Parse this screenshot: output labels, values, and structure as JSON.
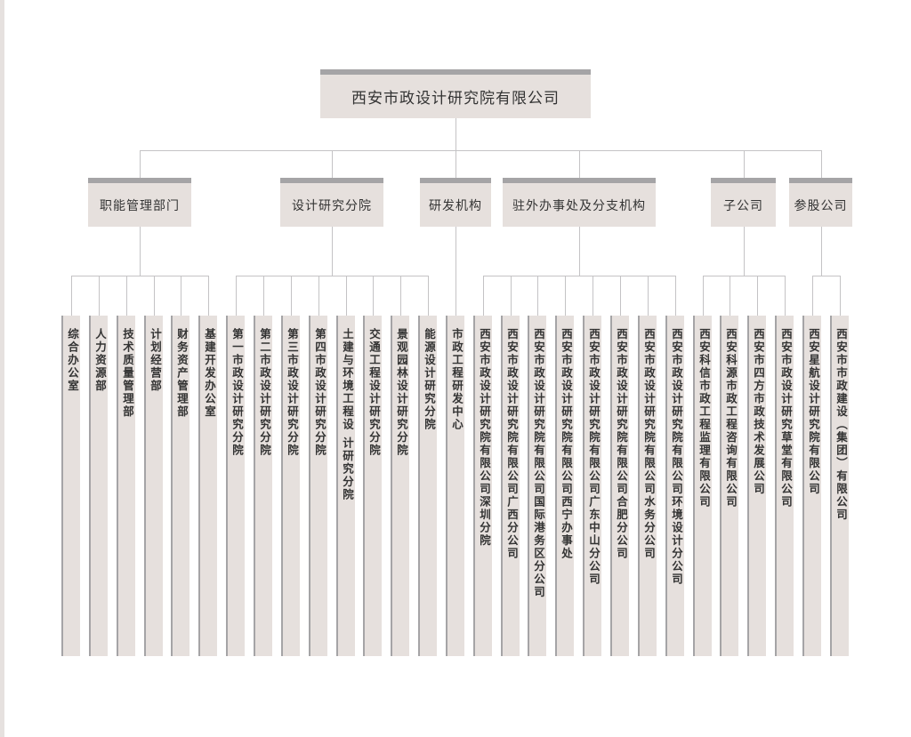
{
  "root": {
    "label": "西安市政设计研究院有限公司"
  },
  "colors": {
    "box_fill": "#e6e0dd",
    "box_top_bar": "#a5a4a6",
    "connector": "#c4c3c5"
  },
  "groups": [
    {
      "label": "职能管理部门",
      "items": [
        "综合办公室",
        "人力资源部",
        "技术质量管理部",
        "计划经营部",
        "财务资产管理部",
        "基建开发办公室"
      ]
    },
    {
      "label": "设计研究分院",
      "items": [
        "第一市政设计研究分院",
        "第二市政设计研究分院",
        "第三市政设计研究分院",
        "第四市政设计研究分院",
        "土建与环境工程设 计研究分院",
        "交通工程设计研究分院",
        "景观园林设计研究分院",
        "能源设计研究分院"
      ]
    },
    {
      "label": "研发机构",
      "items": [
        "市政工程研发中心"
      ]
    },
    {
      "label": "驻外办事处及分支机构",
      "items": [
        "西安市政设计研究院有限公司深圳分院",
        "西安市政设计研究院有限公司广西分公司",
        "西安市政设计研究院有限公司国际港务区分公司",
        "西安市政设计研究院有限公司西宁办事处",
        "西安市政设计研究院有限公司广东中山分公司",
        "西安市政设计研究院有限公司合肥分公司",
        "西安市政设计研究院有限公司水务分公司",
        "西安市政设计研究院有限公司环境设计分公司"
      ]
    },
    {
      "label": "子公司",
      "items": [
        "西安科信市政工程监理有限公司",
        "西安科源市政工程咨询有限公司",
        "西安市四方市政技术发展公司",
        "西安市政设计研究草堂有限公司"
      ]
    },
    {
      "label": "参股公司",
      "items": [
        "西安星航设计研究院有限公司",
        "西安市市政建设（集团）有限公司"
      ]
    }
  ]
}
